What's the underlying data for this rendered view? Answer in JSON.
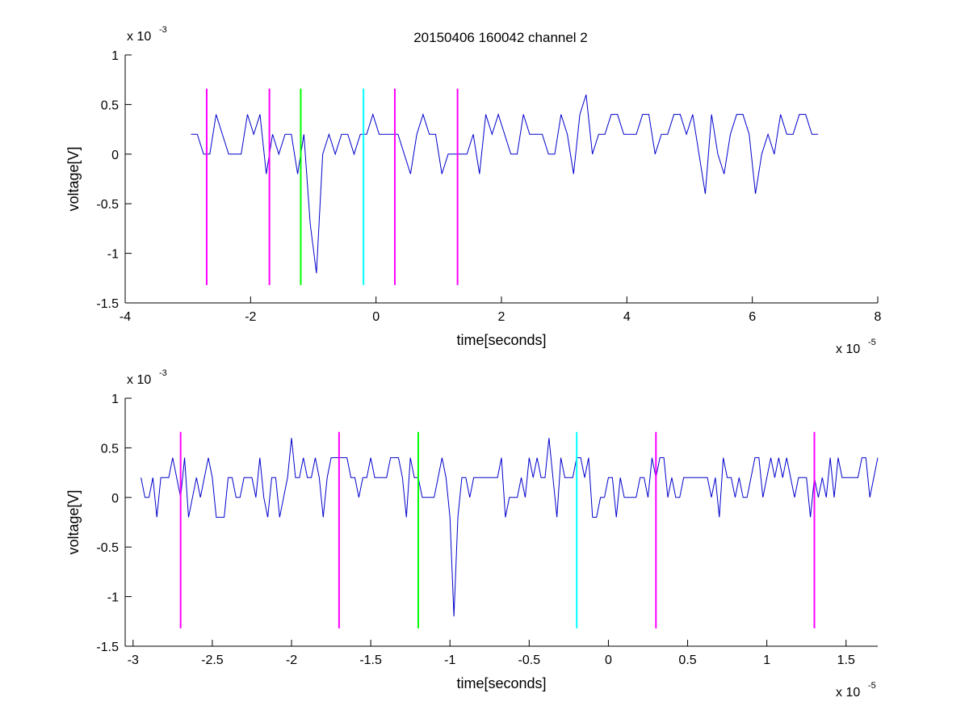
{
  "figure": {
    "title": "20150406 160042 channel 2"
  },
  "chart_data": [
    {
      "type": "line",
      "title": "20150406 160042 channel 2",
      "xlabel": "time[seconds]",
      "ylabel": "voltage[V]",
      "x_exponent_label": "x 10",
      "x_exponent": "-5",
      "y_exponent_label": "x 10",
      "y_exponent": "-3",
      "xlim": [
        -4,
        8
      ],
      "ylim": [
        -1.5,
        1
      ],
      "x_ticks": [
        -4,
        -2,
        0,
        2,
        4,
        6,
        8
      ],
      "x_tick_labels": [
        "-4",
        "-2",
        "0",
        "2",
        "4",
        "6",
        "8"
      ],
      "y_ticks": [
        -1.5,
        -1,
        -0.5,
        0,
        0.5,
        1
      ],
      "y_tick_labels": [
        "-1.5",
        "-1",
        "-0.5",
        "0",
        "0.5",
        "1"
      ],
      "grid": false,
      "signal": {
        "color": "#0000cc",
        "x_range": [
          -2.95,
          7.05
        ],
        "baseline_levels": [
          0,
          0.2,
          0.4
        ],
        "notable_points": [
          {
            "x": -0.97,
            "y": -1.2
          },
          {
            "x": -1.0,
            "y": -0.7
          },
          {
            "x": 3.33,
            "y": 0.6
          },
          {
            "x": 5.2,
            "y": -0.4
          },
          {
            "x": 6.03,
            "y": -0.4
          }
        ]
      },
      "markers": [
        {
          "x": -2.7,
          "color": "#ff00ff"
        },
        {
          "x": -1.7,
          "color": "#ff00ff"
        },
        {
          "x": -1.2,
          "color": "#00ff00"
        },
        {
          "x": -0.2,
          "color": "#00ffff"
        },
        {
          "x": 0.3,
          "color": "#ff00ff"
        },
        {
          "x": 1.3,
          "color": "#ff00ff"
        }
      ],
      "marker_y_range": [
        -1.32,
        0.66
      ]
    },
    {
      "type": "line",
      "title": "",
      "xlabel": "time[seconds]",
      "ylabel": "voltage[V]",
      "x_exponent_label": "x 10",
      "x_exponent": "-5",
      "y_exponent_label": "x 10",
      "y_exponent": "-3",
      "xlim": [
        -3.05,
        1.7
      ],
      "ylim": [
        -1.5,
        1
      ],
      "x_ticks": [
        -3,
        -2.5,
        -2,
        -1.5,
        -1,
        -0.5,
        0,
        0.5,
        1,
        1.5
      ],
      "x_tick_labels": [
        "-3",
        "-2.5",
        "-2",
        "-1.5",
        "-1",
        "-0.5",
        "0",
        "0.5",
        "1",
        "1.5"
      ],
      "y_ticks": [
        -1.5,
        -1,
        -0.5,
        0,
        0.5,
        1
      ],
      "y_tick_labels": [
        "-1.5",
        "-1",
        "-0.5",
        "0",
        "0.5",
        "1"
      ],
      "grid": false,
      "signal": {
        "color": "#0000cc",
        "x_range": [
          -2.95,
          1.7
        ],
        "baseline_levels": [
          0,
          0.2,
          0.4
        ],
        "notable_points": [
          {
            "x": -2.0,
            "y": 0.6
          },
          {
            "x": -0.97,
            "y": -1.2
          },
          {
            "x": -0.37,
            "y": 0.6
          },
          {
            "x": -2.85,
            "y": -0.2
          },
          {
            "x": -1.81,
            "y": -0.2
          }
        ]
      },
      "markers": [
        {
          "x": -2.7,
          "color": "#ff00ff"
        },
        {
          "x": -1.7,
          "color": "#ff00ff"
        },
        {
          "x": -1.2,
          "color": "#00ff00"
        },
        {
          "x": -0.2,
          "color": "#00ffff"
        },
        {
          "x": 0.3,
          "color": "#ff00ff"
        },
        {
          "x": 1.3,
          "color": "#ff00ff"
        }
      ],
      "marker_y_range": [
        -1.32,
        0.66
      ]
    }
  ]
}
